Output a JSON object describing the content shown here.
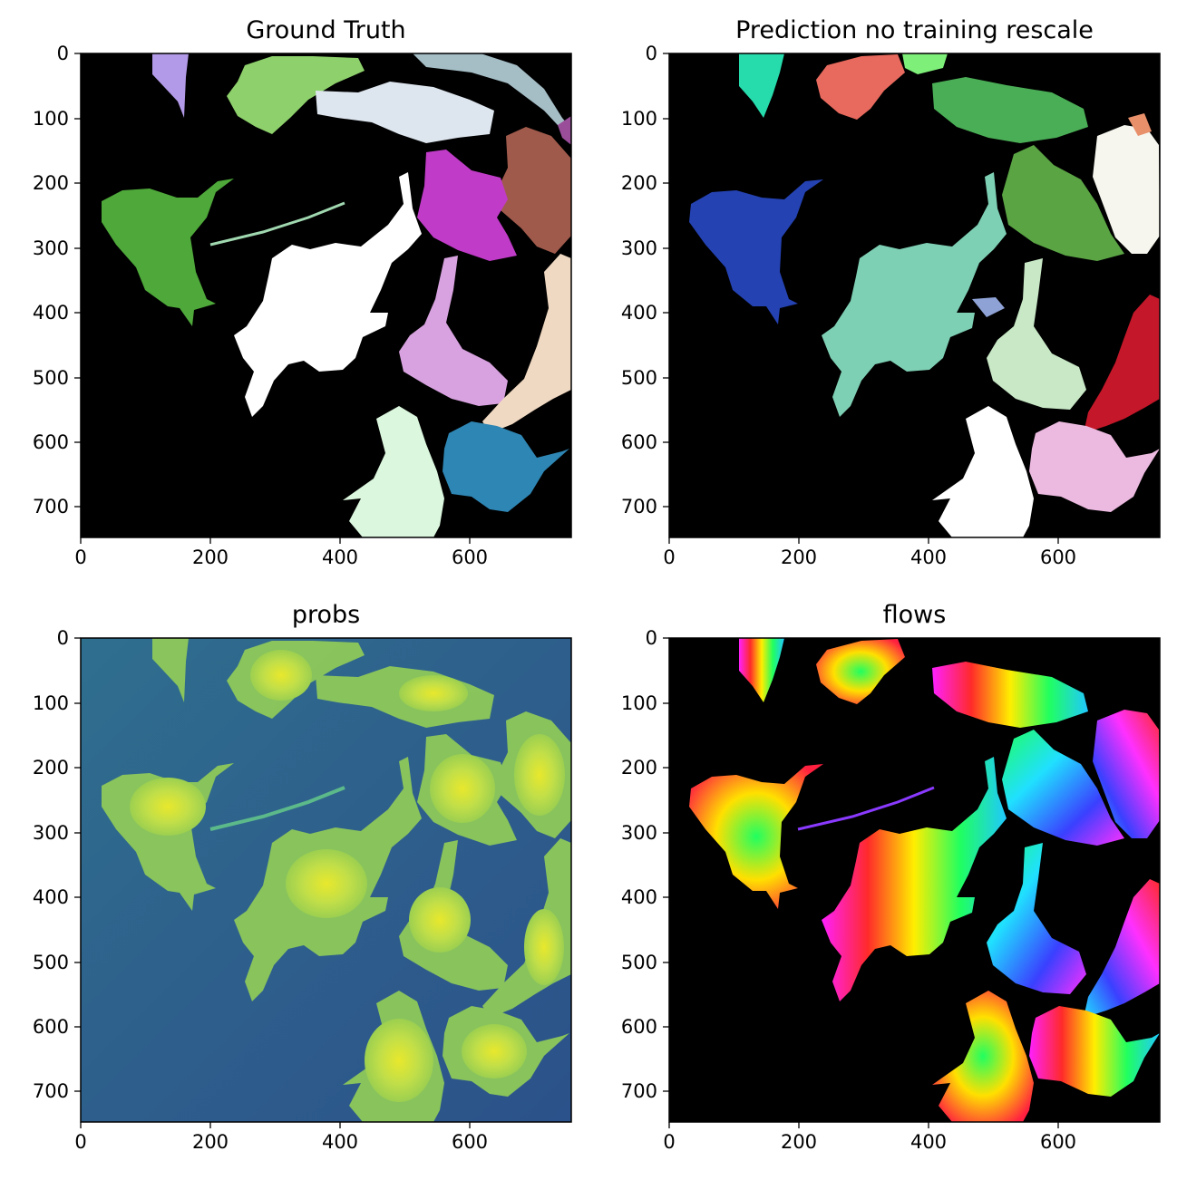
{
  "figure": {
    "panels": [
      {
        "key": "ground-truth",
        "title": "Ground Truth",
        "type": "segmentation",
        "background": "#000000",
        "x_ticks": [
          "0",
          "200",
          "400",
          "600"
        ],
        "y_ticks": [
          "0",
          "100",
          "200",
          "300",
          "400",
          "500",
          "600",
          "700"
        ],
        "colors": [
          "#b39ae8",
          "#8ed16c",
          "#dde5ee",
          "#a5bec6",
          "#a05a4c",
          "#c03cc8",
          "#4ea83a",
          "#ffffff",
          "#d8a2e0",
          "#f0d9c2",
          "#dbf7de",
          "#2e86b4",
          "#9a4e9a"
        ]
      },
      {
        "key": "prediction",
        "title": "Prediction no training rescale",
        "type": "segmentation",
        "background": "#000000",
        "x_ticks": [
          "0",
          "200",
          "400",
          "600"
        ],
        "y_ticks": [
          "0",
          "100",
          "200",
          "300",
          "400",
          "500",
          "600",
          "700"
        ],
        "colors": [
          "#26dcac",
          "#e86a5e",
          "#7ef07a",
          "#4aae56",
          "#5aa444",
          "#f6f6ee",
          "#2442b2",
          "#7ed0b4",
          "#8fa2d6",
          "#c8e8c6",
          "#c4182a",
          "#ecbae0",
          "#ffffff",
          "#e8906a"
        ]
      },
      {
        "key": "probs",
        "title": "probs",
        "type": "heatmap",
        "colormap": "viridis",
        "x_ticks": [
          "0",
          "200",
          "400",
          "600"
        ],
        "y_ticks": [
          "0",
          "100",
          "200",
          "300",
          "400",
          "500",
          "600",
          "700"
        ],
        "colors": [
          "#2f6b8c",
          "#2a5b8a",
          "#9fd04e",
          "#c8e04a",
          "#e6e82a"
        ]
      },
      {
        "key": "flows",
        "title": "flows",
        "type": "flow-field",
        "background": "#000000",
        "x_ticks": [
          "0",
          "200",
          "400",
          "600"
        ],
        "y_ticks": [
          "0",
          "100",
          "200",
          "300",
          "400",
          "500",
          "600",
          "700"
        ],
        "colors": [
          "#ff2020",
          "#ffee00",
          "#20ff40",
          "#20e0ff",
          "#2040ff",
          "#ff20ff"
        ]
      }
    ]
  }
}
